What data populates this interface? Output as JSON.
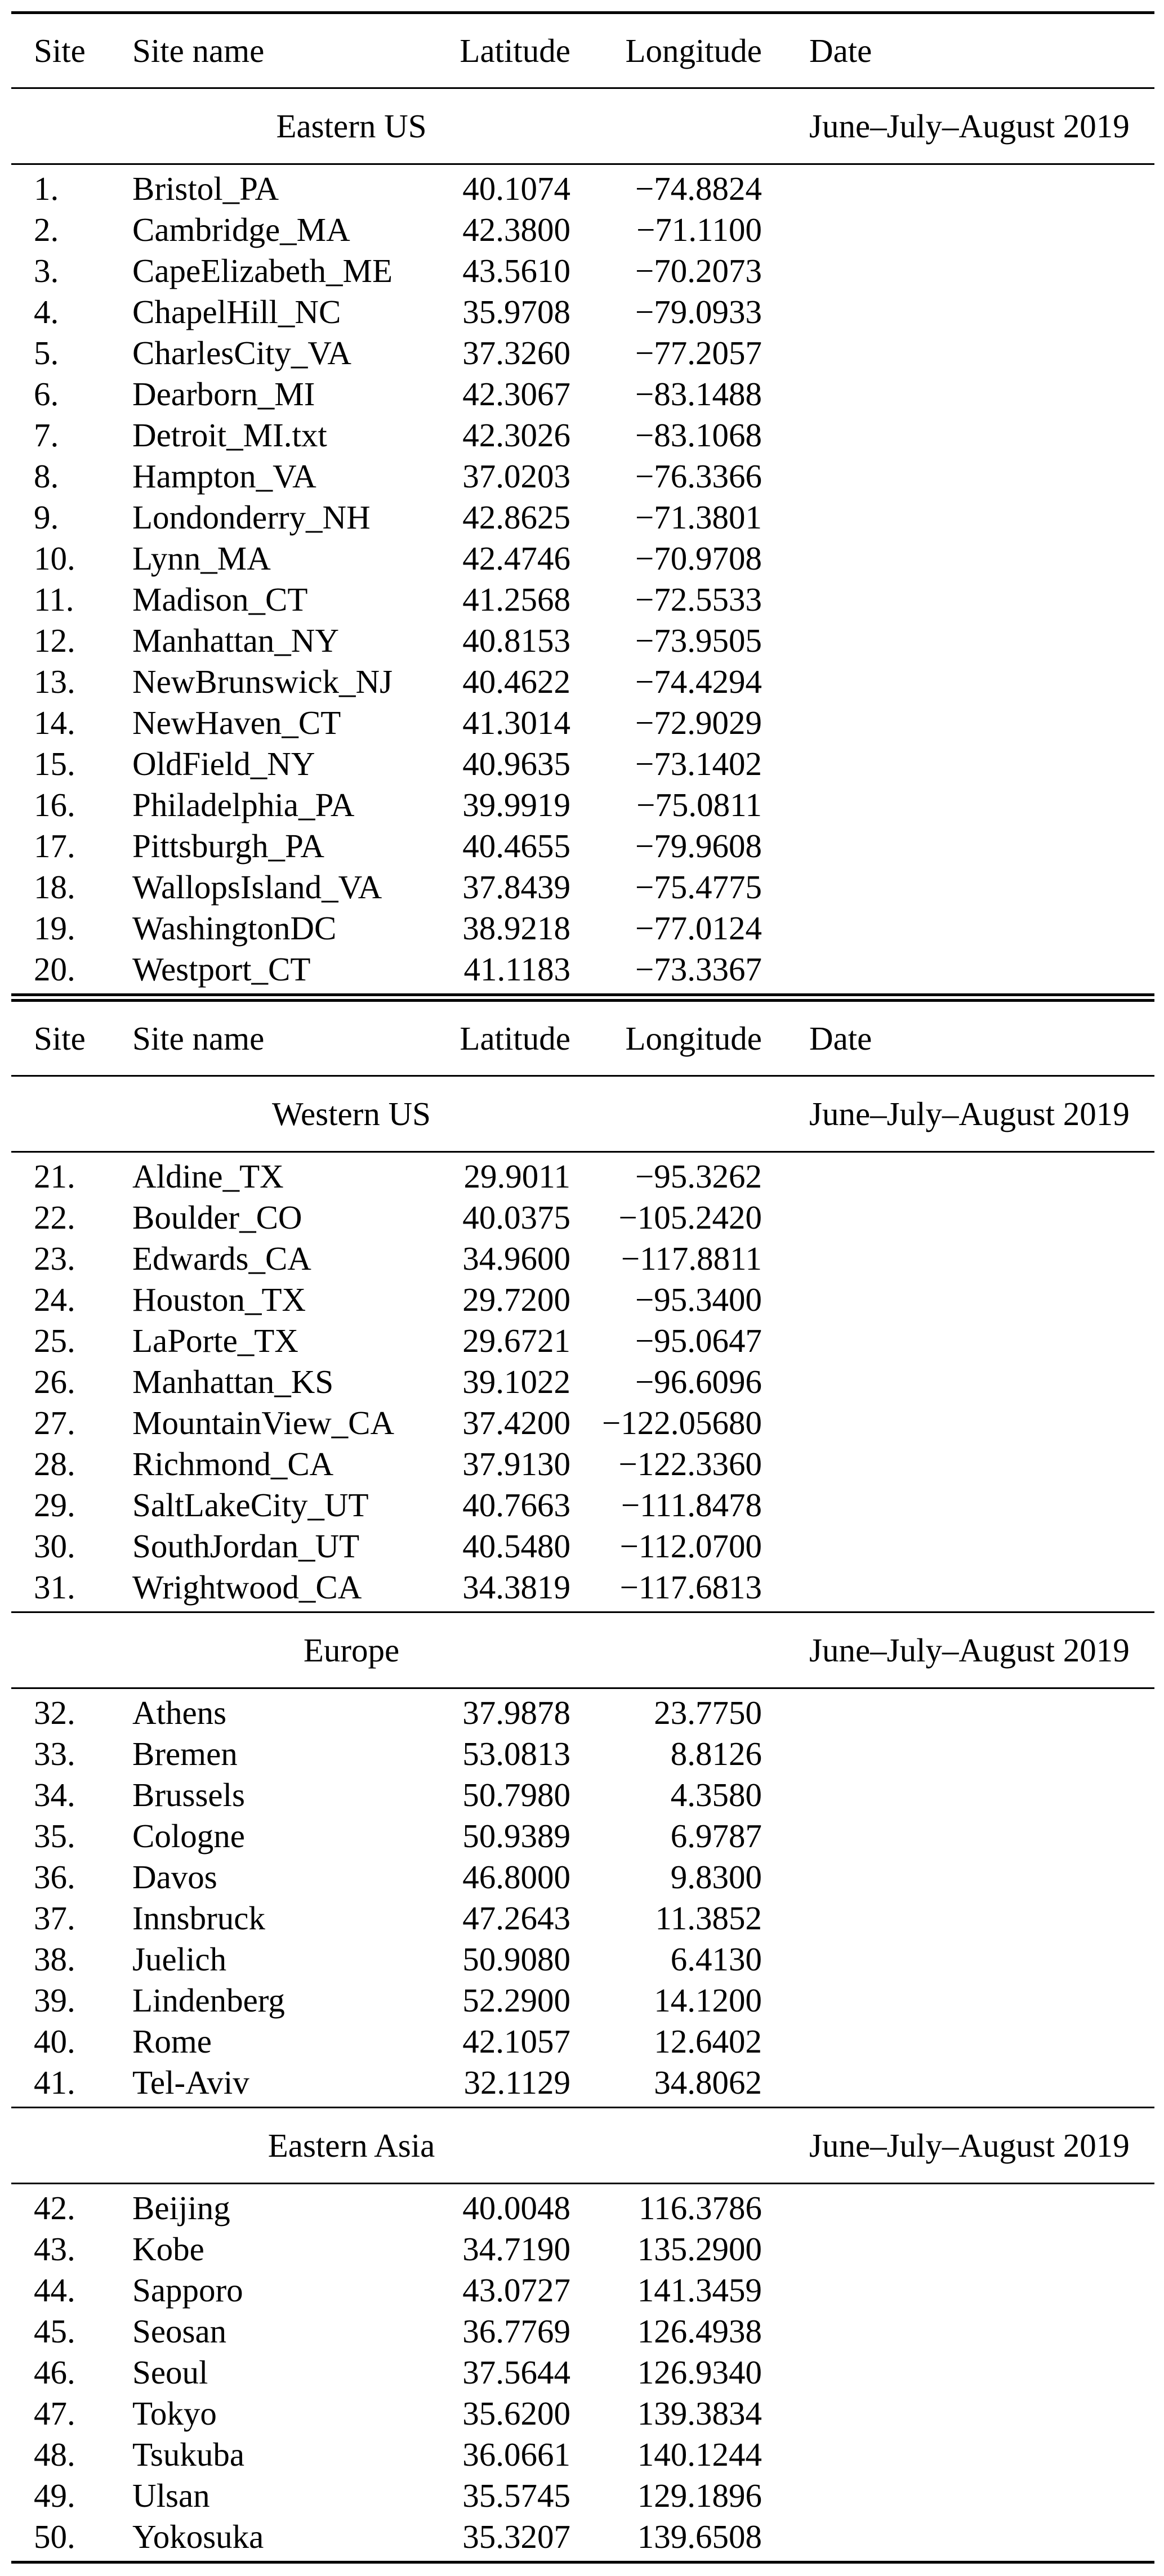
{
  "table": {
    "headers": [
      "Site",
      "Site name",
      "Latitude",
      "Longitude",
      "Date"
    ],
    "blocks": [
      {
        "sections": [
          {
            "name": "Eastern US",
            "date": "June–July–August 2019",
            "rows": [
              {
                "site": "1.",
                "name": "Bristol_PA",
                "lat": "40.1074",
                "lon": "−74.8824"
              },
              {
                "site": "2.",
                "name": "Cambridge_MA",
                "lat": "42.3800",
                "lon": "−71.1100"
              },
              {
                "site": "3.",
                "name": "CapeElizabeth_ME",
                "lat": "43.5610",
                "lon": "−70.2073"
              },
              {
                "site": "4.",
                "name": "ChapelHill_NC",
                "lat": "35.9708",
                "lon": "−79.0933"
              },
              {
                "site": "5.",
                "name": "CharlesCity_VA",
                "lat": "37.3260",
                "lon": "−77.2057"
              },
              {
                "site": "6.",
                "name": "Dearborn_MI",
                "lat": "42.3067",
                "lon": "−83.1488"
              },
              {
                "site": "7.",
                "name": "Detroit_MI.txt",
                "lat": "42.3026",
                "lon": "−83.1068"
              },
              {
                "site": "8.",
                "name": "Hampton_VA",
                "lat": "37.0203",
                "lon": "−76.3366"
              },
              {
                "site": "9.",
                "name": "Londonderry_NH",
                "lat": "42.8625",
                "lon": "−71.3801"
              },
              {
                "site": "10.",
                "name": "Lynn_MA",
                "lat": "42.4746",
                "lon": "−70.9708"
              },
              {
                "site": "11.",
                "name": "Madison_CT",
                "lat": "41.2568",
                "lon": "−72.5533"
              },
              {
                "site": "12.",
                "name": "Manhattan_NY",
                "lat": "40.8153",
                "lon": "−73.9505"
              },
              {
                "site": "13.",
                "name": "NewBrunswick_NJ",
                "lat": "40.4622",
                "lon": "−74.4294"
              },
              {
                "site": "14.",
                "name": "NewHaven_CT",
                "lat": "41.3014",
                "lon": "−72.9029"
              },
              {
                "site": "15.",
                "name": "OldField_NY",
                "lat": "40.9635",
                "lon": "−73.1402"
              },
              {
                "site": "16.",
                "name": "Philadelphia_PA",
                "lat": "39.9919",
                "lon": "−75.0811"
              },
              {
                "site": "17.",
                "name": "Pittsburgh_PA",
                "lat": "40.4655",
                "lon": "−79.9608"
              },
              {
                "site": "18.",
                "name": "WallopsIsland_VA",
                "lat": "37.8439",
                "lon": "−75.4775"
              },
              {
                "site": "19.",
                "name": "WashingtonDC",
                "lat": "38.9218",
                "lon": "−77.0124"
              },
              {
                "site": "20.",
                "name": "Westport_CT",
                "lat": "41.1183",
                "lon": "−73.3367"
              }
            ]
          }
        ]
      },
      {
        "sections": [
          {
            "name": "Western US",
            "date": "June–July–August 2019",
            "rows": [
              {
                "site": "21.",
                "name": "Aldine_TX",
                "lat": "29.9011",
                "lon": "−95.3262"
              },
              {
                "site": "22.",
                "name": "Boulder_CO",
                "lat": "40.0375",
                "lon": "−105.2420"
              },
              {
                "site": "23.",
                "name": "Edwards_CA",
                "lat": "34.9600",
                "lon": "−117.8811"
              },
              {
                "site": "24.",
                "name": "Houston_TX",
                "lat": "29.7200",
                "lon": "−95.3400"
              },
              {
                "site": "25.",
                "name": "LaPorte_TX",
                "lat": "29.6721",
                "lon": "−95.0647"
              },
              {
                "site": "26.",
                "name": "Manhattan_KS",
                "lat": "39.1022",
                "lon": "−96.6096"
              },
              {
                "site": "27.",
                "name": "MountainView_CA",
                "lat": "37.4200",
                "lon": "−122.05680"
              },
              {
                "site": "28.",
                "name": "Richmond_CA",
                "lat": "37.9130",
                "lon": "−122.3360"
              },
              {
                "site": "29.",
                "name": "SaltLakeCity_UT",
                "lat": "40.7663",
                "lon": "−111.8478"
              },
              {
                "site": "30.",
                "name": "SouthJordan_UT",
                "lat": "40.5480",
                "lon": "−112.0700"
              },
              {
                "site": "31.",
                "name": "Wrightwood_CA",
                "lat": "34.3819",
                "lon": "−117.6813"
              }
            ]
          },
          {
            "name": "Europe",
            "date": "June–July–August 2019",
            "rows": [
              {
                "site": "32.",
                "name": "Athens",
                "lat": "37.9878",
                "lon": "23.7750"
              },
              {
                "site": "33.",
                "name": "Bremen",
                "lat": "53.0813",
                "lon": "8.8126"
              },
              {
                "site": "34.",
                "name": "Brussels",
                "lat": "50.7980",
                "lon": "4.3580"
              },
              {
                "site": "35.",
                "name": "Cologne",
                "lat": "50.9389",
                "lon": "6.9787"
              },
              {
                "site": "36.",
                "name": "Davos",
                "lat": "46.8000",
                "lon": "9.8300"
              },
              {
                "site": "37.",
                "name": "Innsbruck",
                "lat": "47.2643",
                "lon": "11.3852"
              },
              {
                "site": "38.",
                "name": "Juelich",
                "lat": "50.9080",
                "lon": "6.4130"
              },
              {
                "site": "39.",
                "name": "Lindenberg",
                "lat": "52.2900",
                "lon": "14.1200"
              },
              {
                "site": "40.",
                "name": "Rome",
                "lat": "42.1057",
                "lon": "12.6402"
              },
              {
                "site": "41.",
                "name": "Tel-Aviv",
                "lat": "32.1129",
                "lon": "34.8062"
              }
            ]
          },
          {
            "name": "Eastern Asia",
            "date": "June–July–August 2019",
            "rows": [
              {
                "site": "42.",
                "name": "Beijing",
                "lat": "40.0048",
                "lon": "116.3786"
              },
              {
                "site": "43.",
                "name": "Kobe",
                "lat": "34.7190",
                "lon": "135.2900"
              },
              {
                "site": "44.",
                "name": "Sapporo",
                "lat": "43.0727",
                "lon": "141.3459"
              },
              {
                "site": "45.",
                "name": "Seosan",
                "lat": "36.7769",
                "lon": "126.4938"
              },
              {
                "site": "46.",
                "name": "Seoul",
                "lat": "37.5644",
                "lon": "126.9340"
              },
              {
                "site": "47.",
                "name": "Tokyo",
                "lat": "35.6200",
                "lon": "139.3834"
              },
              {
                "site": "48.",
                "name": "Tsukuba",
                "lat": "36.0661",
                "lon": "140.1244"
              },
              {
                "site": "49.",
                "name": "Ulsan",
                "lat": "35.5745",
                "lon": "129.1896"
              },
              {
                "site": "50.",
                "name": "Yokosuka",
                "lat": "35.3207",
                "lon": "139.6508"
              }
            ]
          }
        ]
      }
    ]
  }
}
